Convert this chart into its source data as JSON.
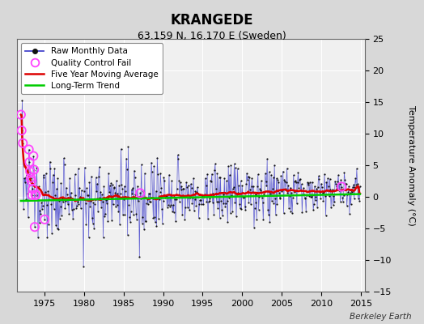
{
  "title": "KRANGEDE",
  "subtitle": "63.159 N, 16.170 E (Sweden)",
  "ylabel": "Temperature Anomaly (°C)",
  "watermark": "Berkeley Earth",
  "xlim": [
    1971.5,
    2015.5
  ],
  "ylim": [
    -15,
    25
  ],
  "yticks": [
    -15,
    -10,
    -5,
    0,
    5,
    10,
    15,
    20,
    25
  ],
  "xticks": [
    1975,
    1980,
    1985,
    1990,
    1995,
    2000,
    2005,
    2010,
    2015
  ],
  "plot_bg_color": "#f0f0f0",
  "fig_bg_color": "#d8d8d8",
  "grid_color": "#ffffff",
  "raw_line_color": "#4444cc",
  "raw_marker_color": "#111111",
  "moving_avg_color": "#dd0000",
  "trend_color": "#00cc00",
  "qc_fail_color": "#ff44ff",
  "n_months": 516,
  "start_year": 1972.0,
  "seed": 137
}
